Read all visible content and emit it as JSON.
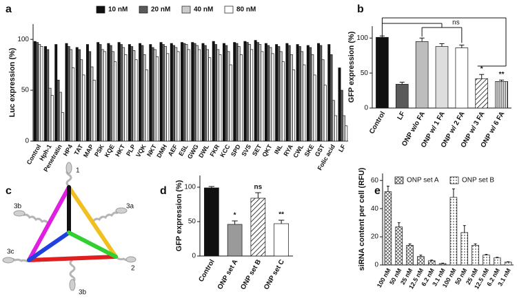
{
  "chart_data": [
    {
      "panel": "a",
      "type": "bar",
      "ylabel": "Luc expression (%)",
      "categories": [
        "Control",
        "Hph-1",
        "Penetratin",
        "HP4",
        "TAT",
        "MAP",
        "PSK",
        "KQE",
        "HKT",
        "PLP",
        "VQK",
        "NKT",
        "DMH",
        "AEF",
        "ESL",
        "GWG",
        "DWL",
        "FKR",
        "KCC",
        "SPD",
        "SVS",
        "SET",
        "QKT",
        "INL",
        "RYA",
        "CWL",
        "SKE",
        "GST",
        "Folic acid",
        "LF"
      ],
      "series": [
        {
          "name": "10 nM",
          "color": "#111111",
          "values": [
            98,
            93,
            95,
            96,
            92,
            95,
            97,
            96,
            97,
            95,
            96,
            95,
            97,
            96,
            97,
            97,
            96,
            98,
            96,
            97,
            98,
            99,
            96,
            95,
            96,
            95,
            94,
            96,
            95,
            72
          ]
        },
        {
          "name": "20 nM",
          "color": "#5a5a5a",
          "values": [
            97,
            90,
            60,
            93,
            90,
            88,
            95,
            94,
            95,
            93,
            94,
            92,
            95,
            94,
            96,
            96,
            94,
            95,
            94,
            96,
            97,
            97,
            94,
            93,
            94,
            93,
            92,
            94,
            85,
            50
          ]
        },
        {
          "name": "40 nM",
          "color": "#cccccc",
          "values": [
            95,
            52,
            48,
            90,
            80,
            73,
            90,
            88,
            92,
            89,
            85,
            90,
            93,
            92,
            95,
            94,
            90,
            90,
            88,
            93,
            95,
            95,
            92,
            88,
            85,
            88,
            85,
            80,
            40,
            25
          ]
        },
        {
          "name": "80 nM",
          "color": "#ffffff",
          "values": [
            93,
            45,
            28,
            72,
            65,
            60,
            88,
            78,
            85,
            80,
            70,
            83,
            86,
            88,
            90,
            90,
            82,
            85,
            75,
            85,
            90,
            88,
            86,
            78,
            70,
            75,
            65,
            55,
            25,
            15
          ]
        }
      ],
      "ylim": [
        0,
        115
      ],
      "yticks": [
        0,
        50,
        100
      ],
      "legend": "top"
    },
    {
      "panel": "b",
      "type": "bar",
      "ylabel": "GFP expression (%)",
      "categories": [
        "Control",
        "LF",
        "ONP w/o FA",
        "ONP w/ 1 FA",
        "ONP w/ 2 FA",
        "ONP w/ 3 FA",
        "ONP w/ 6 FA"
      ],
      "values": [
        101,
        34,
        95,
        88,
        86,
        42,
        38
      ],
      "errors": [
        2,
        3,
        5,
        4,
        4,
        6,
        2
      ],
      "colors": [
        "#111111",
        "#5a5a5a",
        "#bdbdbd",
        "#dddddd",
        "#ffffff",
        "#ffffff",
        "#ffffff"
      ],
      "patterns": [
        null,
        null,
        null,
        null,
        null,
        "diagonal",
        "vertical"
      ],
      "annotations": [
        null,
        null,
        null,
        null,
        null,
        "*",
        "**"
      ],
      "bracket_label": "ns",
      "ylim": [
        0,
        117
      ],
      "yticks": [
        0,
        50,
        100
      ]
    },
    {
      "panel": "d",
      "type": "bar",
      "ylabel": "GFP expression (%)",
      "categories": [
        "Control",
        "ONP set A",
        "ONP set B",
        "ONP set C"
      ],
      "values": [
        99,
        46,
        84,
        47
      ],
      "errors": [
        2,
        5,
        8,
        5
      ],
      "colors": [
        "#111111",
        "#9a9a9a",
        "#ffffff",
        "#ffffff"
      ],
      "patterns": [
        null,
        null,
        "diagonal",
        null
      ],
      "annotations": [
        null,
        "*",
        "ns",
        "**"
      ],
      "ylim": [
        0,
        117
      ],
      "yticks": [
        0,
        50,
        100
      ]
    },
    {
      "panel": "e",
      "type": "bar",
      "ylabel": "siRNA content per cell (RFU)",
      "categories": [
        "100 nM",
        "50 nM",
        "25 nM",
        "12.5 nM",
        "6.2 nM",
        "3.1 nM",
        "100 nM",
        "50 nM",
        "25 nM",
        "12.5 nM",
        "6.2 nM",
        "3.1 nM"
      ],
      "series": [
        {
          "name": "ONP set A",
          "color": "#ffffff",
          "pattern": "cross",
          "values": [
            52,
            27,
            14,
            6,
            3,
            1,
            null,
            null,
            null,
            null,
            null,
            null
          ],
          "errors": [
            4,
            3,
            1,
            1,
            0.5,
            0.3,
            null,
            null,
            null,
            null,
            null,
            null
          ]
        },
        {
          "name": "ONP set B",
          "color": "#ffffff",
          "pattern": "dots",
          "values": [
            null,
            null,
            null,
            null,
            null,
            null,
            48,
            23,
            14,
            7,
            5,
            2
          ],
          "errors": [
            null,
            null,
            null,
            null,
            null,
            null,
            6,
            5,
            1,
            0.5,
            0.5,
            0.3
          ]
        }
      ],
      "ylim": [
        0,
        65
      ],
      "yticks": [
        0,
        20,
        40,
        60
      ],
      "legend": "top-left"
    }
  ],
  "diagram": {
    "panel": "c",
    "labels": [
      "1",
      "3b",
      "3a",
      "3c",
      "2",
      "3b"
    ]
  }
}
